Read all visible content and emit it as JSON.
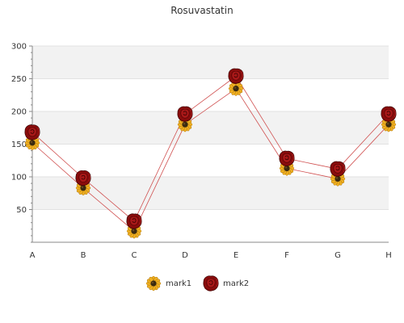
{
  "chart_data": {
    "type": "line",
    "title": "Rosuvastatin",
    "categories": [
      "A",
      "B",
      "C",
      "D",
      "E",
      "F",
      "G",
      "H"
    ],
    "ylim": [
      0,
      300
    ],
    "yticks": [
      50,
      100,
      150,
      200,
      250,
      300
    ],
    "grid": "horizontal bands",
    "legend_position": "bottom",
    "series": [
      {
        "name": "mark1",
        "values": [
          152,
          83,
          17,
          180,
          235,
          113,
          97,
          180
        ],
        "marker": "sunflower-icon",
        "color": "#cc3333"
      },
      {
        "name": "mark2",
        "values": [
          168,
          98,
          32,
          196,
          254,
          128,
          112,
          196
        ],
        "marker": "rose-icon",
        "color": "#cc3333"
      }
    ]
  },
  "colors": {
    "line": "#d05050",
    "band": "#f2f2f2",
    "axis": "#888888",
    "sunflower_petal": "#f0b020",
    "sunflower_center": "#3a2a10",
    "rose_petal": "#8a0c0c",
    "rose_dark": "#4a0404"
  }
}
